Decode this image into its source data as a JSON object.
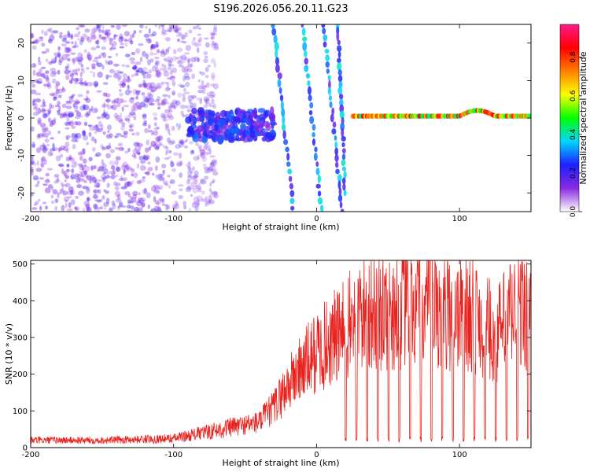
{
  "title": "S196.2026.056.20.11.G23",
  "colors": {
    "snr_line": "#e8231f",
    "spectrogram_low": "#8a2be2",
    "axis": "#000000"
  },
  "chart_data": [
    {
      "type": "heatmap",
      "name": "spectrogram",
      "title": "S196.2026.056.20.11.G23",
      "xlabel": "Height of straight line (km)",
      "ylabel": "Frequency (Hz)",
      "xlim": [
        -200,
        150
      ],
      "ylim": [
        -25,
        25
      ],
      "x_ticks": [
        -200,
        -100,
        0,
        100
      ],
      "y_ticks": [
        -20,
        -10,
        0,
        10,
        20
      ],
      "colorbar": {
        "label": "Normalized spectral amplitude",
        "range": [
          0.0,
          0.97
        ],
        "ticks": [
          0.0,
          0.2,
          0.4,
          0.6,
          0.8
        ],
        "colormap": [
          "#ffffff",
          "#8a2be2",
          "#1f1fff",
          "#00d8ff",
          "#00ff00",
          "#ffff00",
          "#ff8000",
          "#ff0000",
          "#ff1a8c"
        ]
      },
      "features": [
        {
          "desc": "scattered noise",
          "x_range": [
            -200,
            -90
          ],
          "freq_range": [
            -25,
            25
          ],
          "amplitude": 0.05
        },
        {
          "desc": "signal band",
          "x_range": [
            -90,
            -30
          ],
          "freq_center": -2,
          "amplitude": 0.2
        },
        {
          "desc": "diagonal streaks",
          "x_range": [
            -30,
            25
          ],
          "freq_range": [
            -25,
            25
          ],
          "amplitude": 0.3
        },
        {
          "desc": "stable tone",
          "x_range": [
            25,
            150
          ],
          "freq_center": 0.5,
          "amplitude": 0.6
        }
      ]
    },
    {
      "type": "line",
      "name": "snr",
      "xlabel": "Height of straight line (km)",
      "ylabel": "SNR (10 * v/v)",
      "xlim": [
        -200,
        150
      ],
      "ylim": [
        0,
        510
      ],
      "x_ticks": [
        -200,
        -100,
        0,
        100
      ],
      "y_ticks": [
        0,
        100,
        200,
        300,
        400,
        500
      ],
      "series": [
        {
          "name": "SNR",
          "envelope_x": [
            -200,
            -150,
            -100,
            -80,
            -60,
            -40,
            -30,
            -20,
            -10,
            0,
            10,
            20,
            30,
            50,
            70,
            90,
            110,
            125,
            135,
            150
          ],
          "envelope_y": [
            20,
            20,
            25,
            40,
            55,
            70,
            110,
            170,
            220,
            260,
            290,
            320,
            360,
            370,
            380,
            370,
            365,
            300,
            360,
            380
          ],
          "dropouts_start_x": 20,
          "dropout_spacing_km": 7.5,
          "dropout_value": 15
        }
      ]
    }
  ]
}
